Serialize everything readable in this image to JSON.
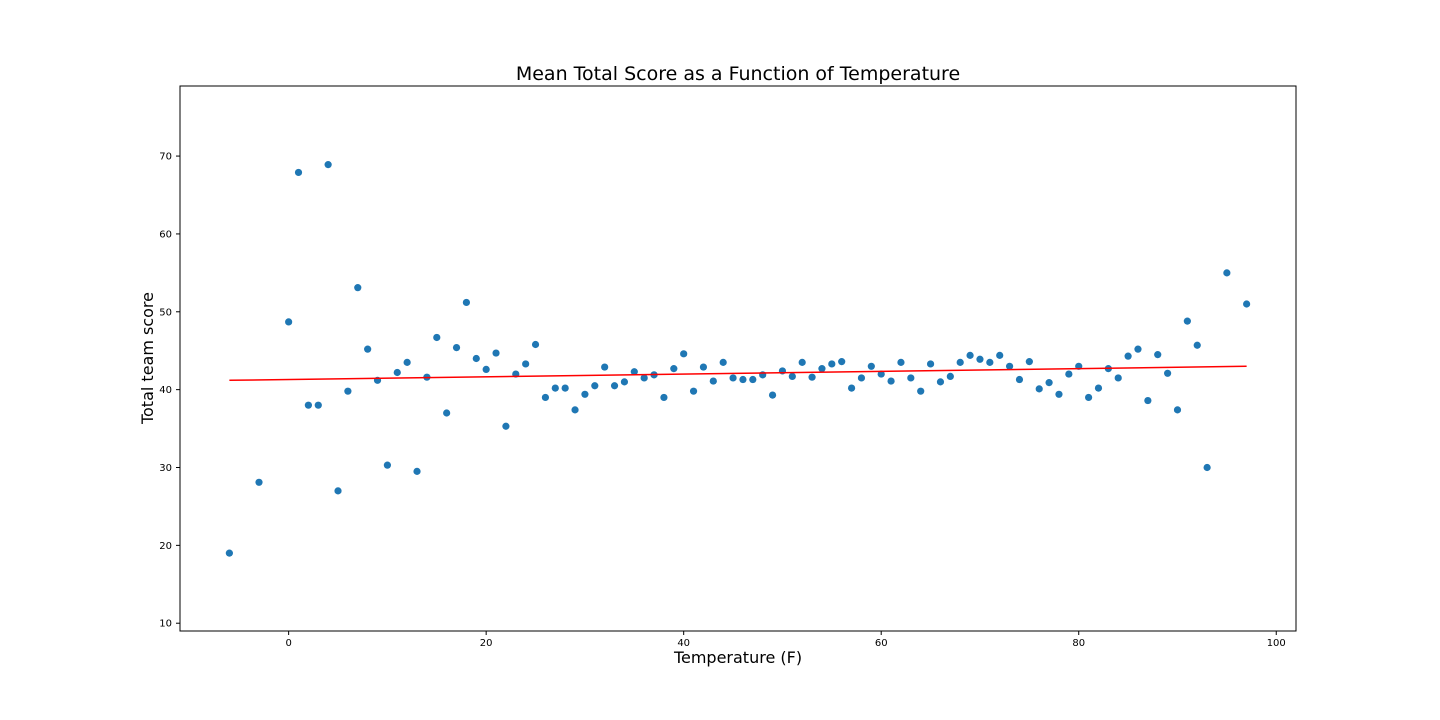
{
  "chart_data": {
    "type": "scatter",
    "title": "Mean Total Score as a Function of Temperature",
    "xlabel": "Temperature (F)",
    "ylabel": "Total team score",
    "xlim": [
      -11,
      102
    ],
    "ylim": [
      9,
      79
    ],
    "x_ticks": [
      0,
      20,
      40,
      60,
      80,
      100
    ],
    "y_ticks": [
      10,
      20,
      30,
      40,
      50,
      60,
      70
    ],
    "grid": false,
    "legend": "none",
    "colors": {
      "points": "#1f77b4",
      "trend": "#ff0000"
    },
    "series": [
      {
        "type": "scatter",
        "points": [
          [
            -6,
            19.0
          ],
          [
            -3,
            28.1
          ],
          [
            0,
            48.7
          ],
          [
            1,
            67.9
          ],
          [
            2,
            38.0
          ],
          [
            3,
            38.0
          ],
          [
            4,
            68.9
          ],
          [
            5,
            27.0
          ],
          [
            6,
            39.8
          ],
          [
            7,
            53.1
          ],
          [
            8,
            45.2
          ],
          [
            9,
            41.2
          ],
          [
            10,
            30.3
          ],
          [
            11,
            42.2
          ],
          [
            12,
            43.5
          ],
          [
            13,
            29.5
          ],
          [
            14,
            41.6
          ],
          [
            15,
            46.7
          ],
          [
            16,
            37.0
          ],
          [
            17,
            45.4
          ],
          [
            18,
            51.2
          ],
          [
            19,
            44.0
          ],
          [
            20,
            42.6
          ],
          [
            21,
            44.7
          ],
          [
            22,
            35.3
          ],
          [
            23,
            42.0
          ],
          [
            24,
            43.3
          ],
          [
            25,
            45.8
          ],
          [
            26,
            39.0
          ],
          [
            27,
            40.2
          ],
          [
            28,
            40.2
          ],
          [
            29,
            37.4
          ],
          [
            30,
            39.4
          ],
          [
            31,
            40.5
          ],
          [
            32,
            42.9
          ],
          [
            33,
            40.5
          ],
          [
            34,
            41.0
          ],
          [
            35,
            42.3
          ],
          [
            36,
            41.5
          ],
          [
            37,
            41.9
          ],
          [
            38,
            39.0
          ],
          [
            39,
            42.7
          ],
          [
            40,
            44.6
          ],
          [
            41,
            39.8
          ],
          [
            42,
            42.9
          ],
          [
            43,
            41.1
          ],
          [
            44,
            43.5
          ],
          [
            45,
            41.5
          ],
          [
            46,
            41.3
          ],
          [
            47,
            41.3
          ],
          [
            48,
            41.9
          ],
          [
            49,
            39.3
          ],
          [
            50,
            42.4
          ],
          [
            51,
            41.7
          ],
          [
            52,
            43.5
          ],
          [
            53,
            41.6
          ],
          [
            54,
            42.7
          ],
          [
            55,
            43.3
          ],
          [
            56,
            43.6
          ],
          [
            57,
            40.2
          ],
          [
            58,
            41.5
          ],
          [
            59,
            43.0
          ],
          [
            60,
            42.0
          ],
          [
            61,
            41.1
          ],
          [
            62,
            43.5
          ],
          [
            63,
            41.5
          ],
          [
            64,
            39.8
          ],
          [
            65,
            43.3
          ],
          [
            66,
            41.0
          ],
          [
            67,
            41.7
          ],
          [
            68,
            43.5
          ],
          [
            69,
            44.4
          ],
          [
            70,
            43.9
          ],
          [
            71,
            43.5
          ],
          [
            72,
            44.4
          ],
          [
            73,
            43.0
          ],
          [
            74,
            41.3
          ],
          [
            75,
            43.6
          ],
          [
            76,
            40.1
          ],
          [
            77,
            40.9
          ],
          [
            78,
            39.4
          ],
          [
            79,
            42.0
          ],
          [
            80,
            43.0
          ],
          [
            81,
            39.0
          ],
          [
            82,
            40.2
          ],
          [
            83,
            42.7
          ],
          [
            84,
            41.5
          ],
          [
            85,
            44.3
          ],
          [
            86,
            45.2
          ],
          [
            87,
            38.6
          ],
          [
            88,
            44.5
          ],
          [
            89,
            42.1
          ],
          [
            90,
            37.4
          ],
          [
            91,
            48.8
          ],
          [
            92,
            45.7
          ],
          [
            93,
            30.0
          ],
          [
            95,
            55.0
          ],
          [
            97,
            51.0
          ]
        ]
      },
      {
        "type": "line",
        "points": [
          [
            -6,
            41.2
          ],
          [
            97,
            43.0
          ]
        ]
      }
    ]
  }
}
